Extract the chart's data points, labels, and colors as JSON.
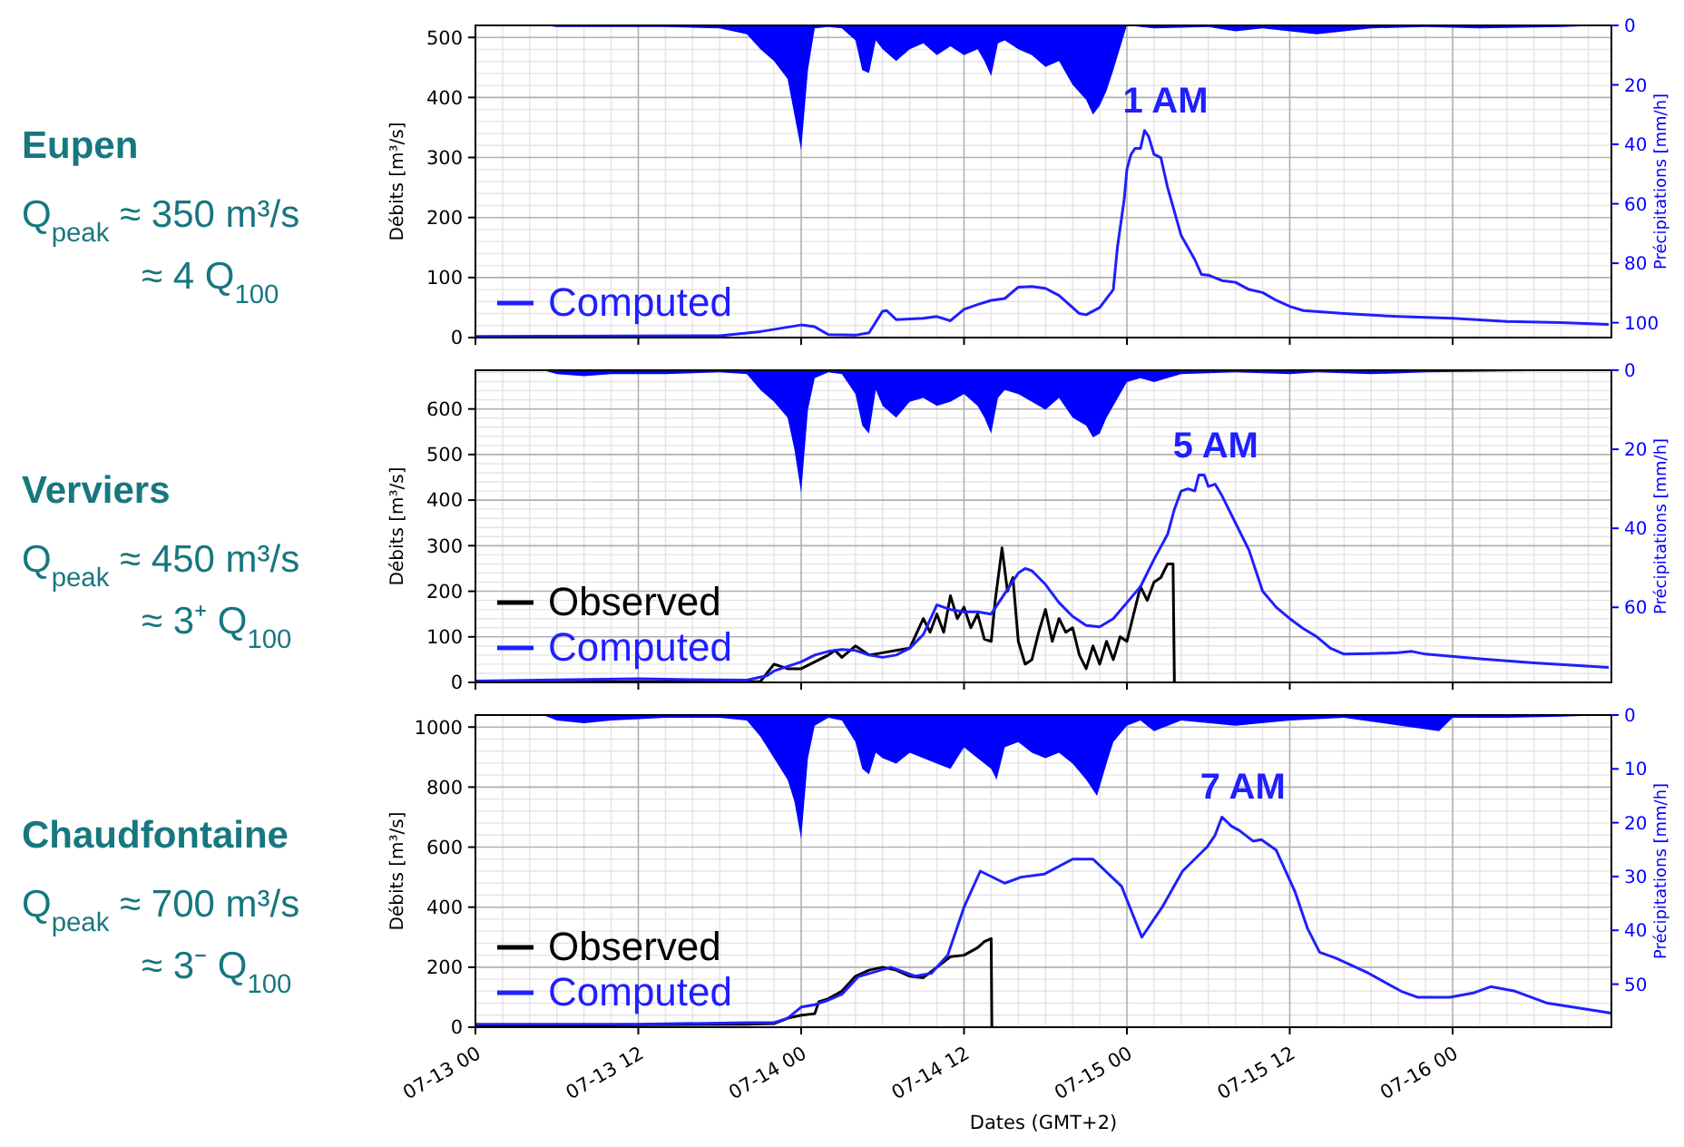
{
  "chart_data": [
    {
      "type": "line",
      "ylabel": "Débits [m³/s]",
      "y2label": "Précipitations [mm/h]",
      "xlim": [
        "--07-13T00:00",
        "--07-16T11:42"
      ],
      "xticks": [
        {
          "value": "--07-13T00:00",
          "label": null
        },
        {
          "value": "--07-13T12:00",
          "label": null
        },
        {
          "value": "--07-14T00:00",
          "label": null
        },
        {
          "value": "--07-14T12:00",
          "label": null
        },
        {
          "value": "--07-15T00:00",
          "label": null
        },
        {
          "value": "--07-15T12:00",
          "label": null
        },
        {
          "value": "--07-16T00:00",
          "label": null
        }
      ],
      "ylim": [
        0,
        520
      ],
      "yticks": [
        0,
        100,
        200,
        300,
        400,
        500
      ],
      "y2lim": [
        105,
        0
      ],
      "y2ticks": [
        0,
        20,
        40,
        60,
        80,
        100
      ],
      "grid": true,
      "legend": "bottom left",
      "tick_labels": "y",
      "annotations": [
        "Eupen",
        "Q$_{peak}$ ≈ 350 m³/s",
        "≈ 4 Q$_{100}$",
        {
          "text": "1 AM",
          "x": "--07-15T01:18",
          "y": 345
        }
      ],
      "series": [
        {
          "type": "area",
          "axis": "y2",
          "color": "#0000ff",
          "x": [
            "--07-13T00:00",
            "--07-13T05:00",
            "--07-13T06:00",
            "--07-13T10:00",
            "--07-13T14:00",
            "--07-13T18:00",
            "--07-13T20:00",
            "--07-13T21:00",
            "--07-13T22:00",
            "--07-13T23:00",
            "--07-13T23:30",
            "--07-14T00:00",
            "--07-14T00:30",
            "--07-14T01:00",
            "--07-14T02:00",
            "--07-14T03:00",
            "--07-14T04:00",
            "--07-14T04:30",
            "--07-14T05:00",
            "--07-14T05:30",
            "--07-14T06:00",
            "--07-14T07:00",
            "--07-14T08:00",
            "--07-14T09:00",
            "--07-14T10:00",
            "--07-14T11:00",
            "--07-14T12:00",
            "--07-14T13:00",
            "--07-14T13:30",
            "--07-14T14:00",
            "--07-14T14:30",
            "--07-14T15:00",
            "--07-14T16:00",
            "--07-14T17:00",
            "--07-14T18:00",
            "--07-14T19:00",
            "--07-14T20:00",
            "--07-14T21:00",
            "--07-14T21:30",
            "--07-14T22:00",
            "--07-14T22:30",
            "--07-14T23:00",
            "--07-15T00:00",
            "--07-15T02:00",
            "--07-15T06:00",
            "--07-15T08:00",
            "--07-15T10:00",
            "--07-15T14:00",
            "--07-15T18:00",
            "--07-15T22:00",
            "--07-16T02:00",
            "--07-16T08:00",
            "--07-16T11:30"
          ],
          "values": [
            0,
            0,
            0.5,
            0.5,
            0.5,
            1,
            3,
            8,
            12,
            18,
            30,
            42,
            15,
            1,
            0.5,
            1,
            5,
            15,
            16,
            5,
            8,
            12,
            8,
            6,
            10,
            7,
            10,
            8,
            12,
            17,
            6,
            5,
            8,
            10,
            14,
            12,
            20,
            25,
            30,
            27,
            22,
            15,
            0,
            1,
            0.5,
            2,
            1,
            3,
            1,
            0.5,
            1,
            0.5,
            0
          ]
        },
        {
          "name": "Computed",
          "color": "#1f1fff",
          "x": [
            "--07-13T00:00",
            "--07-13T18:00",
            "--07-13T21:00",
            "--07-14T00:00",
            "--07-14T01:00",
            "--07-14T02:00",
            "--07-14T04:00",
            "--07-14T05:00",
            "--07-14T06:00",
            "--07-14T06:18",
            "--07-14T07:00",
            "--07-14T09:00",
            "--07-14T10:00",
            "--07-14T11:00",
            "--07-14T12:00",
            "--07-14T13:00",
            "--07-14T14:00",
            "--07-14T15:00",
            "--07-14T16:00",
            "--07-14T17:00",
            "--07-14T18:00",
            "--07-14T19:00",
            "--07-14T20:00",
            "--07-14T20:30",
            "--07-14T21:00",
            "--07-14T22:00",
            "--07-14T23:00",
            "--07-14T23:18",
            "--07-14T23:48",
            "--07-15T00:00",
            "--07-15T00:18",
            "--07-15T00:36",
            "--07-15T01:00",
            "--07-15T01:18",
            "--07-15T01:36",
            "--07-15T02:00",
            "--07-15T02:30",
            "--07-15T03:00",
            "--07-15T04:00",
            "--07-15T05:00",
            "--07-15T05:30",
            "--07-15T06:00",
            "--07-15T07:00",
            "--07-15T08:00",
            "--07-15T09:00",
            "--07-15T10:00",
            "--07-15T11:00",
            "--07-15T12:00",
            "--07-15T13:00",
            "--07-15T16:00",
            "--07-15T20:00",
            "--07-16T00:00",
            "--07-16T04:00",
            "--07-16T08:00",
            "--07-16T11:30"
          ],
          "values": [
            2,
            3,
            10,
            21,
            18,
            5,
            4,
            8,
            44,
            45,
            30,
            32,
            35,
            28,
            47,
            55,
            62,
            65,
            84,
            85,
            82,
            70,
            50,
            40,
            38,
            50,
            80,
            150,
            230,
            280,
            305,
            315,
            315,
            345,
            335,
            305,
            300,
            250,
            170,
            130,
            105,
            104,
            95,
            92,
            80,
            75,
            62,
            52,
            45,
            40,
            35,
            32,
            27,
            25,
            22
          ]
        }
      ]
    },
    {
      "type": "line",
      "ylabel": "Débits [m³/s]",
      "y2label": "Précipitations [mm/h]",
      "xlim": [
        "--07-13T00:00",
        "--07-16T11:42"
      ],
      "xticks": [
        {
          "value": "--07-13T00:00",
          "label": null
        },
        {
          "value": "--07-13T12:00",
          "label": null
        },
        {
          "value": "--07-14T00:00",
          "label": null
        },
        {
          "value": "--07-14T12:00",
          "label": null
        },
        {
          "value": "--07-15T00:00",
          "label": null
        },
        {
          "value": "--07-15T12:00",
          "label": null
        },
        {
          "value": "--07-16T00:00",
          "label": null
        }
      ],
      "ylim": [
        0,
        685
      ],
      "yticks": [
        0,
        100,
        200,
        300,
        400,
        500,
        600
      ],
      "y2lim": [
        79,
        0
      ],
      "y2ticks": [
        0,
        20,
        40,
        60
      ],
      "grid": true,
      "legend": "bottom left",
      "tick_labels": "y",
      "annotations": [
        "Verviers",
        "Q$_{peak}$ ≈ 450 m³/s",
        "≈ 3⁺ Q$_{100}$",
        {
          "text": "5 AM",
          "x": "--07-15T05:00",
          "y": 455
        }
      ],
      "series": [
        {
          "type": "area",
          "axis": "y2",
          "color": "#0000ff",
          "x": [
            "--07-13T00:00",
            "--07-13T05:00",
            "--07-13T06:00",
            "--07-13T08:00",
            "--07-13T10:00",
            "--07-13T14:00",
            "--07-13T18:00",
            "--07-13T20:00",
            "--07-13T21:00",
            "--07-13T22:00",
            "--07-13T23:00",
            "--07-13T23:30",
            "--07-14T00:00",
            "--07-14T00:30",
            "--07-14T01:00",
            "--07-14T02:00",
            "--07-14T03:00",
            "--07-14T04:00",
            "--07-14T04:30",
            "--07-14T05:00",
            "--07-14T05:30",
            "--07-14T06:00",
            "--07-14T07:00",
            "--07-14T08:00",
            "--07-14T09:00",
            "--07-14T10:00",
            "--07-14T11:00",
            "--07-14T12:00",
            "--07-14T13:00",
            "--07-14T13:30",
            "--07-14T14:00",
            "--07-14T14:30",
            "--07-14T15:00",
            "--07-14T16:00",
            "--07-14T17:00",
            "--07-14T18:00",
            "--07-14T19:00",
            "--07-14T20:00",
            "--07-14T21:00",
            "--07-14T21:30",
            "--07-14T22:00",
            "--07-14T22:30",
            "--07-14T23:00",
            "--07-15T00:00",
            "--07-15T01:00",
            "--07-15T02:00",
            "--07-15T04:00",
            "--07-15T08:00",
            "--07-15T12:00",
            "--07-15T14:00",
            "--07-15T18:00",
            "--07-15T22:00",
            "--07-16T04:00",
            "--07-16T11:30"
          ],
          "values": [
            0,
            0,
            1,
            1.5,
            1,
            1,
            0.5,
            1,
            5,
            8,
            12,
            20,
            31,
            10,
            2,
            0.5,
            1,
            6,
            14,
            16,
            5,
            9,
            12,
            8,
            7,
            9,
            8,
            6,
            9,
            12,
            16,
            7,
            5,
            6,
            8,
            10,
            7,
            12,
            14,
            17,
            16,
            12,
            9,
            3,
            2,
            3,
            1,
            0.5,
            1,
            0.5,
            1,
            0.5,
            0.3,
            0
          ]
        },
        {
          "name": "Observed",
          "color": "#000000",
          "x": [
            "--07-13T00:00",
            "--07-13T21:00",
            "--07-13T22:00",
            "--07-13T23:00",
            "--07-14T00:00",
            "--07-14T01:00",
            "--07-14T02:00",
            "--07-14T02:30",
            "--07-14T03:00",
            "--07-14T04:00",
            "--07-14T05:00",
            "--07-14T06:00",
            "--07-14T07:00",
            "--07-14T08:00",
            "--07-14T09:00",
            "--07-14T09:30",
            "--07-14T10:00",
            "--07-14T10:30",
            "--07-14T11:00",
            "--07-14T11:30",
            "--07-14T12:00",
            "--07-14T12:30",
            "--07-14T13:00",
            "--07-14T13:30",
            "--07-14T14:00",
            "--07-14T14:18",
            "--07-14T14:48",
            "--07-14T15:12",
            "--07-14T15:36",
            "--07-14T16:00",
            "--07-14T16:30",
            "--07-14T17:00",
            "--07-14T17:30",
            "--07-14T18:00",
            "--07-14T18:30",
            "--07-14T19:00",
            "--07-14T19:30",
            "--07-14T20:00",
            "--07-14T20:30",
            "--07-14T21:00",
            "--07-14T21:30",
            "--07-14T22:00",
            "--07-14T22:30",
            "--07-14T23:00",
            "--07-14T23:30",
            "--07-15T00:00",
            "--07-15T00:30",
            "--07-15T01:00",
            "--07-15T01:30",
            "--07-15T02:00",
            "--07-15T02:30",
            "--07-15T03:00",
            "--07-15T03:24",
            "--07-15T03:30"
          ],
          "values": [
            0,
            2,
            40,
            30,
            30,
            45,
            60,
            70,
            55,
            80,
            60,
            65,
            70,
            75,
            140,
            110,
            150,
            110,
            190,
            140,
            165,
            120,
            150,
            95,
            90,
            180,
            295,
            200,
            230,
            90,
            40,
            50,
            110,
            160,
            90,
            140,
            110,
            120,
            60,
            30,
            80,
            40,
            90,
            50,
            100,
            90,
            150,
            210,
            180,
            220,
            230,
            260,
            260,
            0
          ]
        },
        {
          "name": "Computed",
          "color": "#1f1fff",
          "x": [
            "--07-13T00:00",
            "--07-13T12:00",
            "--07-13T16:00",
            "--07-13T20:00",
            "--07-13T21:30",
            "--07-13T22:00",
            "--07-14T00:00",
            "--07-14T01:00",
            "--07-14T02:00",
            "--07-14T03:00",
            "--07-14T04:00",
            "--07-14T05:00",
            "--07-14T06:00",
            "--07-14T07:00",
            "--07-14T08:00",
            "--07-14T09:00",
            "--07-14T10:00",
            "--07-14T11:00",
            "--07-14T12:00",
            "--07-14T13:00",
            "--07-14T14:00",
            "--07-14T15:00",
            "--07-14T16:00",
            "--07-14T16:30",
            "--07-14T17:00",
            "--07-14T18:00",
            "--07-14T19:00",
            "--07-14T20:00",
            "--07-14T21:00",
            "--07-14T22:00",
            "--07-14T23:00",
            "--07-15T00:00",
            "--07-15T01:00",
            "--07-15T02:00",
            "--07-15T03:00",
            "--07-15T03:30",
            "--07-15T04:00",
            "--07-15T04:30",
            "--07-15T05:00",
            "--07-15T05:18",
            "--07-15T05:42",
            "--07-15T06:00",
            "--07-15T06:30",
            "--07-15T07:00",
            "--07-15T08:00",
            "--07-15T09:00",
            "--07-15T10:00",
            "--07-15T11:00",
            "--07-15T12:00",
            "--07-15T13:00",
            "--07-15T14:00",
            "--07-15T15:00",
            "--07-15T16:00",
            "--07-15T18:00",
            "--07-15T20:00",
            "--07-15T21:00",
            "--07-15T22:00",
            "--07-16T02:00",
            "--07-16T06:00",
            "--07-16T11:30"
          ],
          "values": [
            3,
            8,
            6,
            5,
            15,
            25,
            45,
            60,
            68,
            72,
            70,
            60,
            55,
            60,
            75,
            105,
            170,
            160,
            155,
            155,
            150,
            195,
            240,
            250,
            245,
            215,
            175,
            145,
            125,
            122,
            140,
            175,
            210,
            270,
            325,
            380,
            420,
            425,
            420,
            455,
            455,
            430,
            435,
            410,
            350,
            290,
            200,
            165,
            140,
            118,
            100,
            75,
            62,
            63,
            65,
            68,
            62,
            52,
            43,
            33
          ]
        }
      ]
    },
    {
      "type": "line",
      "xlabel": "Dates (GMT+2)",
      "ylabel": "Débits [m³/s]",
      "y2label": "Précipitations [mm/h]",
      "xlim": [
        "--07-13T00:00",
        "--07-16T11:42"
      ],
      "xticks": [
        {
          "value": "--07-13T00:00",
          "label": "07-13 00"
        },
        {
          "value": "--07-13T12:00",
          "label": "07-13 12"
        },
        {
          "value": "--07-14T00:00",
          "label": "07-14 00"
        },
        {
          "value": "--07-14T12:00",
          "label": "07-14 12"
        },
        {
          "value": "--07-15T00:00",
          "label": "07-15 00"
        },
        {
          "value": "--07-15T12:00",
          "label": "07-15 12"
        },
        {
          "value": "--07-16T00:00",
          "label": "07-16 00"
        }
      ],
      "ylim": [
        0,
        1040
      ],
      "yticks": [
        0,
        200,
        400,
        600,
        800,
        1000
      ],
      "y2lim": [
        58,
        0
      ],
      "y2ticks": [
        0,
        10,
        20,
        30,
        40,
        50
      ],
      "grid": true,
      "legend": "bottom left",
      "annotations": [
        "Chaudfontaine",
        "Q$_{peak}$ ≈ 700 m³/s",
        "≈ 3⁻ Q$_{100}$",
        {
          "text": "7 AM",
          "x": "--07-15T07:00",
          "y": 700
        }
      ],
      "series": [
        {
          "type": "area",
          "axis": "y2",
          "color": "#0000ff",
          "x": [
            "--07-13T00:00",
            "--07-13T05:00",
            "--07-13T06:00",
            "--07-13T08:00",
            "--07-13T10:00",
            "--07-13T14:00",
            "--07-13T18:00",
            "--07-13T20:00",
            "--07-13T21:00",
            "--07-13T22:00",
            "--07-13T23:00",
            "--07-13T23:30",
            "--07-14T00:00",
            "--07-14T00:30",
            "--07-14T01:00",
            "--07-14T02:00",
            "--07-14T03:00",
            "--07-14T04:00",
            "--07-14T04:30",
            "--07-14T05:00",
            "--07-14T05:30",
            "--07-14T06:00",
            "--07-14T07:00",
            "--07-14T08:00",
            "--07-14T09:00",
            "--07-14T10:00",
            "--07-14T11:00",
            "--07-14T12:00",
            "--07-14T13:00",
            "--07-14T14:00",
            "--07-14T14:24",
            "--07-14T15:00",
            "--07-14T16:00",
            "--07-14T17:00",
            "--07-14T18:00",
            "--07-14T19:00",
            "--07-14T20:00",
            "--07-14T21:00",
            "--07-14T21:48",
            "--07-14T22:30",
            "--07-14T23:00",
            "--07-15T00:00",
            "--07-15T01:00",
            "--07-15T02:00",
            "--07-15T04:00",
            "--07-15T08:00",
            "--07-15T12:00",
            "--07-15T16:00",
            "--07-15T23:00",
            "--07-16T00:00",
            "--07-16T04:00",
            "--07-16T08:00",
            "--07-16T11:30"
          ],
          "values": [
            0,
            0,
            1,
            1.5,
            1,
            0.5,
            0.5,
            1,
            4,
            8,
            12,
            16,
            23,
            8,
            2,
            0.5,
            1,
            5,
            10,
            11,
            7,
            8,
            9,
            7,
            8,
            9,
            10,
            6,
            8,
            10,
            12,
            6,
            5,
            7,
            8,
            7,
            9,
            12,
            15,
            9,
            5,
            2,
            1,
            3,
            1,
            2,
            1,
            0.5,
            3,
            0.5,
            0.5,
            0.3,
            0
          ]
        },
        {
          "name": "Observed",
          "color": "#000000",
          "x": [
            "--07-13T00:00",
            "--07-13T20:00",
            "--07-13T22:00",
            "--07-13T23:00",
            "--07-14T00:00",
            "--07-14T01:00",
            "--07-14T01:18",
            "--07-14T02:00",
            "--07-14T03:00",
            "--07-14T04:00",
            "--07-14T05:00",
            "--07-14T06:00",
            "--07-14T07:00",
            "--07-14T08:00",
            "--07-14T09:00",
            "--07-14T10:00",
            "--07-14T11:00",
            "--07-14T12:00",
            "--07-14T13:00",
            "--07-14T13:30",
            "--07-14T14:00",
            "--07-14T14:03"
          ],
          "values": [
            5,
            10,
            12,
            30,
            40,
            45,
            85,
            95,
            120,
            170,
            190,
            200,
            190,
            170,
            165,
            200,
            235,
            240,
            265,
            285,
            295,
            0
          ]
        },
        {
          "name": "Computed",
          "color": "#1f1fff",
          "x": [
            "--07-13T00:00",
            "--07-13T12:00",
            "--07-13T20:00",
            "--07-13T22:00",
            "--07-13T23:00",
            "--07-14T00:00",
            "--07-14T01:00",
            "--07-14T02:00",
            "--07-14T03:00",
            "--07-14T04:12",
            "--07-14T06:36",
            "--07-14T08:24",
            "--07-14T09:36",
            "--07-14T10:48",
            "--07-14T12:00",
            "--07-14T13:12",
            "--07-14T15:00",
            "--07-14T16:12",
            "--07-14T17:54",
            "--07-14T20:00",
            "--07-14T21:30",
            "--07-14T23:36",
            "--07-15T01:06",
            "--07-15T02:36",
            "--07-15T04:06",
            "--07-15T05:54",
            "--07-15T06:30",
            "--07-15T07:00",
            "--07-15T07:42",
            "--07-15T08:18",
            "--07-15T09:18",
            "--07-15T09:54",
            "--07-15T11:00",
            "--07-15T12:24",
            "--07-15T13:18",
            "--07-15T14:12",
            "--07-15T15:24",
            "--07-15T17:48",
            "--07-15T20:12",
            "--07-15T21:24",
            "--07-15T23:48",
            "--07-16T01:36",
            "--07-16T02:48",
            "--07-16T04:36",
            "--07-16T07:00",
            "--07-16T09:54",
            "--07-16T11:42"
          ],
          "values": [
            10,
            10,
            15,
            15,
            30,
            67,
            75,
            90,
            110,
            168,
            200,
            170,
            180,
            240,
            400,
            520,
            480,
            500,
            510,
            560,
            560,
            470,
            300,
            400,
            520,
            600,
            640,
            700,
            670,
            655,
            620,
            625,
            590,
            450,
            330,
            250,
            230,
            180,
            120,
            100,
            100,
            115,
            135,
            120,
            80,
            60,
            47
          ]
        }
      ]
    }
  ]
}
